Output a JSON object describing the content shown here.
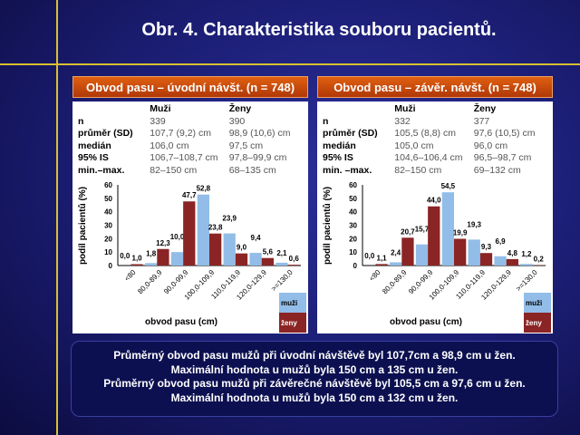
{
  "title": "Obr. 4. Charakteristika souboru pacientů.",
  "colors": {
    "muzi": "#92bde8",
    "zeny": "#8b2424"
  },
  "panels": [
    {
      "header": "Obvod pasu – úvodní návšt. (n = 748)",
      "stats": {
        "col_muzi": "Muži",
        "col_zeny": "Ženy",
        "rows": [
          {
            "label": "n",
            "muzi": "339",
            "zeny": "390"
          },
          {
            "label": "průměr (SD)",
            "muzi": "107,7 (9,2) cm",
            "zeny": "98,9 (10,6) cm"
          },
          {
            "label": "medián",
            "muzi": "106,0 cm",
            "zeny": "97,5 cm"
          },
          {
            "label": "95% IS",
            "muzi": "106,7–108,7 cm",
            "zeny": "97,8–99,9 cm"
          },
          {
            "label": "min.–max.",
            "muzi": "82–150 cm",
            "zeny": "68–135 cm"
          }
        ]
      }
    },
    {
      "header": "Obvod pasu – závěr. návšt. (n = 748)",
      "stats": {
        "col_muzi": "Muži",
        "col_zeny": "Ženy",
        "rows": [
          {
            "label": "n",
            "muzi": "332",
            "zeny": "377"
          },
          {
            "label": "průměr (SD)",
            "muzi": "105,5 (8,8) cm",
            "zeny": "97,6 (10,5) cm"
          },
          {
            "label": "medián",
            "muzi": "105,0 cm",
            "zeny": "96,0 cm"
          },
          {
            "label": "95% IS",
            "muzi": "104,6–106,4 cm",
            "zeny": "96,5–98,7 cm"
          },
          {
            "label": "min. –max.",
            "muzi": "82–150 cm",
            "zeny": "69–132 cm"
          }
        ]
      }
    }
  ],
  "chart_data": [
    {
      "type": "bar",
      "xlabel": "obvod pasu (cm)",
      "ylabel": "podíl pacientů (%)",
      "ylim": [
        0,
        60
      ],
      "yticks": [
        0,
        10,
        20,
        30,
        40,
        50,
        60
      ],
      "categories": [
        "<80",
        "80,0-89,9",
        "90,0-99,9",
        "100,0-109,9",
        "110,0-119,9",
        "120,0-129,9",
        ">=130,0"
      ],
      "series": [
        {
          "name": "muži",
          "values": [
            0.0,
            1.8,
            10.0,
            52.8,
            23.9,
            9.4,
            2.1
          ],
          "labels": [
            "0,0",
            "1,8",
            "10,0",
            "52,8",
            "23,9",
            "9,4",
            "2,1"
          ]
        },
        {
          "name": "ženy",
          "values": [
            1.0,
            12.3,
            47.7,
            23.8,
            9.0,
            5.6,
            0.6
          ],
          "labels": [
            "1,0",
            "12,3",
            "47,7",
            "23,8",
            "9,0",
            "5,6",
            "0,6"
          ]
        }
      ],
      "legend": "bottom-right"
    },
    {
      "type": "bar",
      "xlabel": "obvod pasu (cm)",
      "ylabel": "podíl pacientů (%)",
      "ylim": [
        0,
        60
      ],
      "yticks": [
        0,
        10,
        20,
        30,
        40,
        50,
        60
      ],
      "categories": [
        "<80",
        "80,0-89,9",
        "90,0-99,9",
        "100,0-109,9",
        "110,0-119,9",
        "120,0-129,9",
        ">=130,0"
      ],
      "series": [
        {
          "name": "muži",
          "values": [
            0.0,
            2.4,
            15.7,
            54.5,
            19.3,
            6.9,
            1.2
          ],
          "labels": [
            "0,0",
            "2,4",
            "15,7",
            "54,5",
            "19,3",
            "6,9",
            "1,2"
          ]
        },
        {
          "name": "ženy",
          "values": [
            1.1,
            20.7,
            44.0,
            19.9,
            9.3,
            4.8,
            0.2
          ],
          "labels": [
            "1,1",
            "20,7",
            "44,0",
            "19,9",
            "9,3",
            "4,8",
            "0,2"
          ]
        }
      ],
      "legend": "bottom-right"
    }
  ],
  "note": [
    "Průměrný obvod pasu mužů při úvodní návštěvě byl 107,7cm a 98,9 cm u žen.",
    "Maximální hodnota u mužů byla 150 cm a 135 cm u žen.",
    "Průměrný obvod pasu mužů při závěrečné návštěvě byl 105,5 cm a 97,6 cm u žen.",
    "Maximální hodnota u mužů byla 150 cm a 132 cm u žen."
  ]
}
